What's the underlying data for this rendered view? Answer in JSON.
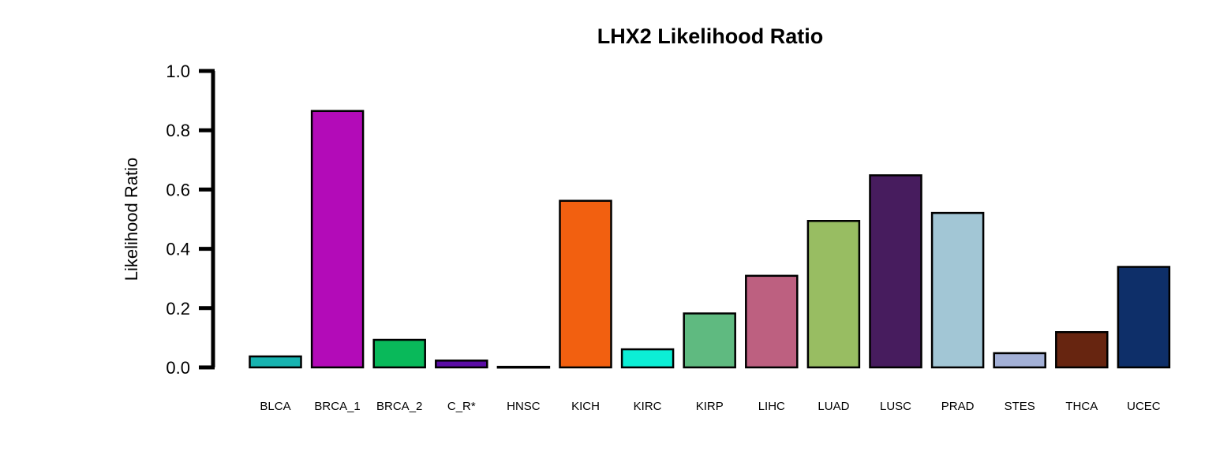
{
  "chart_data": {
    "type": "bar",
    "title": "LHX2 Likelihood Ratio",
    "xlabel": "",
    "ylabel": "Likelihood Ratio",
    "ylim": [
      0,
      1.0
    ],
    "yticks": [
      "0.0",
      "0.2",
      "0.4",
      "0.6",
      "0.8",
      "1.0"
    ],
    "grid": false,
    "categories": [
      "BLCA",
      "BRCA_1",
      "BRCA_2",
      "C_R*",
      "HNSC",
      "KICH",
      "KIRC",
      "KIRP",
      "LIHC",
      "LUAD",
      "LUSC",
      "PRAD",
      "STES",
      "THCA",
      "UCEC"
    ],
    "values": [
      0.037,
      0.865,
      0.093,
      0.023,
      0.002,
      0.562,
      0.061,
      0.182,
      0.309,
      0.494,
      0.648,
      0.521,
      0.048,
      0.119,
      0.339
    ],
    "colors": [
      "#17b3b0",
      "#b30bb8",
      "#09b95a",
      "#5b0da6",
      "#3a0d66",
      "#f26010",
      "#0ceed5",
      "#5fba80",
      "#bd6080",
      "#98bd62",
      "#471c5e",
      "#a2c6d5",
      "#a3b0d6",
      "#672510",
      "#0e2f69"
    ]
  }
}
